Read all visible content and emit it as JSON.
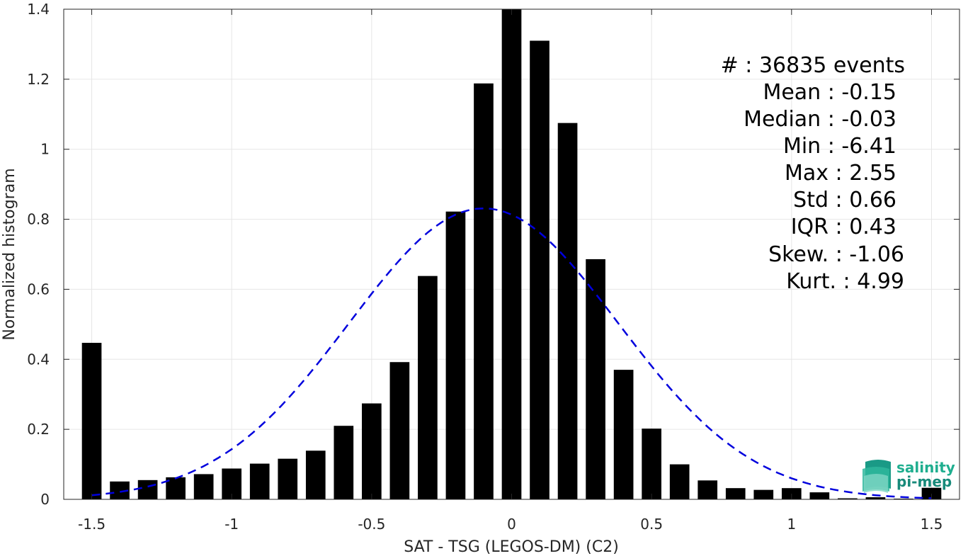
{
  "chart_data": {
    "type": "bar",
    "xlabel": "SAT - TSG (LEGOS-DM) (C2)",
    "ylabel": "Normalized histogram",
    "xlim": [
      -1.6,
      1.6
    ],
    "ylim": [
      0,
      1.4
    ],
    "xticks": [
      -1.5,
      -1,
      -0.5,
      0,
      0.5,
      1,
      1.5
    ],
    "xtick_labels": [
      "-1.5",
      "-1",
      "-0.5",
      "0",
      "0.5",
      "1",
      "1.5"
    ],
    "yticks": [
      0,
      0.2,
      0.4,
      0.6,
      0.8,
      1,
      1.2,
      1.4
    ],
    "ytick_labels": [
      "0",
      "0.2",
      "0.4",
      "0.6",
      "0.8",
      "1",
      "1.2",
      "1.4"
    ],
    "grid": true,
    "bar_width": 0.07,
    "bar_color": "#000000",
    "x": [
      -1.5,
      -1.4,
      -1.3,
      -1.2,
      -1.1,
      -1.0,
      -0.9,
      -0.8,
      -0.7,
      -0.6,
      -0.5,
      -0.4,
      -0.3,
      -0.2,
      -0.1,
      0.0,
      0.1,
      0.2,
      0.3,
      0.4,
      0.5,
      0.6,
      0.7,
      0.8,
      0.9,
      1.0,
      1.1,
      1.2,
      1.3,
      1.4,
      1.5
    ],
    "values": [
      0.447,
      0.051,
      0.055,
      0.063,
      0.072,
      0.088,
      0.102,
      0.116,
      0.139,
      0.21,
      0.274,
      0.392,
      0.638,
      0.822,
      1.188,
      1.4,
      1.31,
      1.075,
      0.686,
      0.37,
      0.202,
      0.1,
      0.054,
      0.032,
      0.027,
      0.032,
      0.02,
      0.003,
      0.006,
      0.002,
      0.033
    ],
    "fit_curve": {
      "style": "dashed",
      "color": "#0000dd",
      "mean": -0.1,
      "std": 0.48,
      "x_range": [
        -1.5,
        1.5
      ]
    }
  },
  "stats": {
    "events": "#  : 36835 events",
    "mean": "Mean : -0.15",
    "median": "Median : -0.03",
    "min": "Min : -6.41",
    "max": "Max : 2.55",
    "std": "Std : 0.66",
    "iqr": "IQR : 0.43",
    "skew": "Skew. : -1.06",
    "kurt": "Kurt. : 4.99"
  },
  "logo": {
    "line1": "salinity",
    "line2": "pi-mep",
    "color1": "#1fae8f",
    "color2": "#178a7a"
  }
}
